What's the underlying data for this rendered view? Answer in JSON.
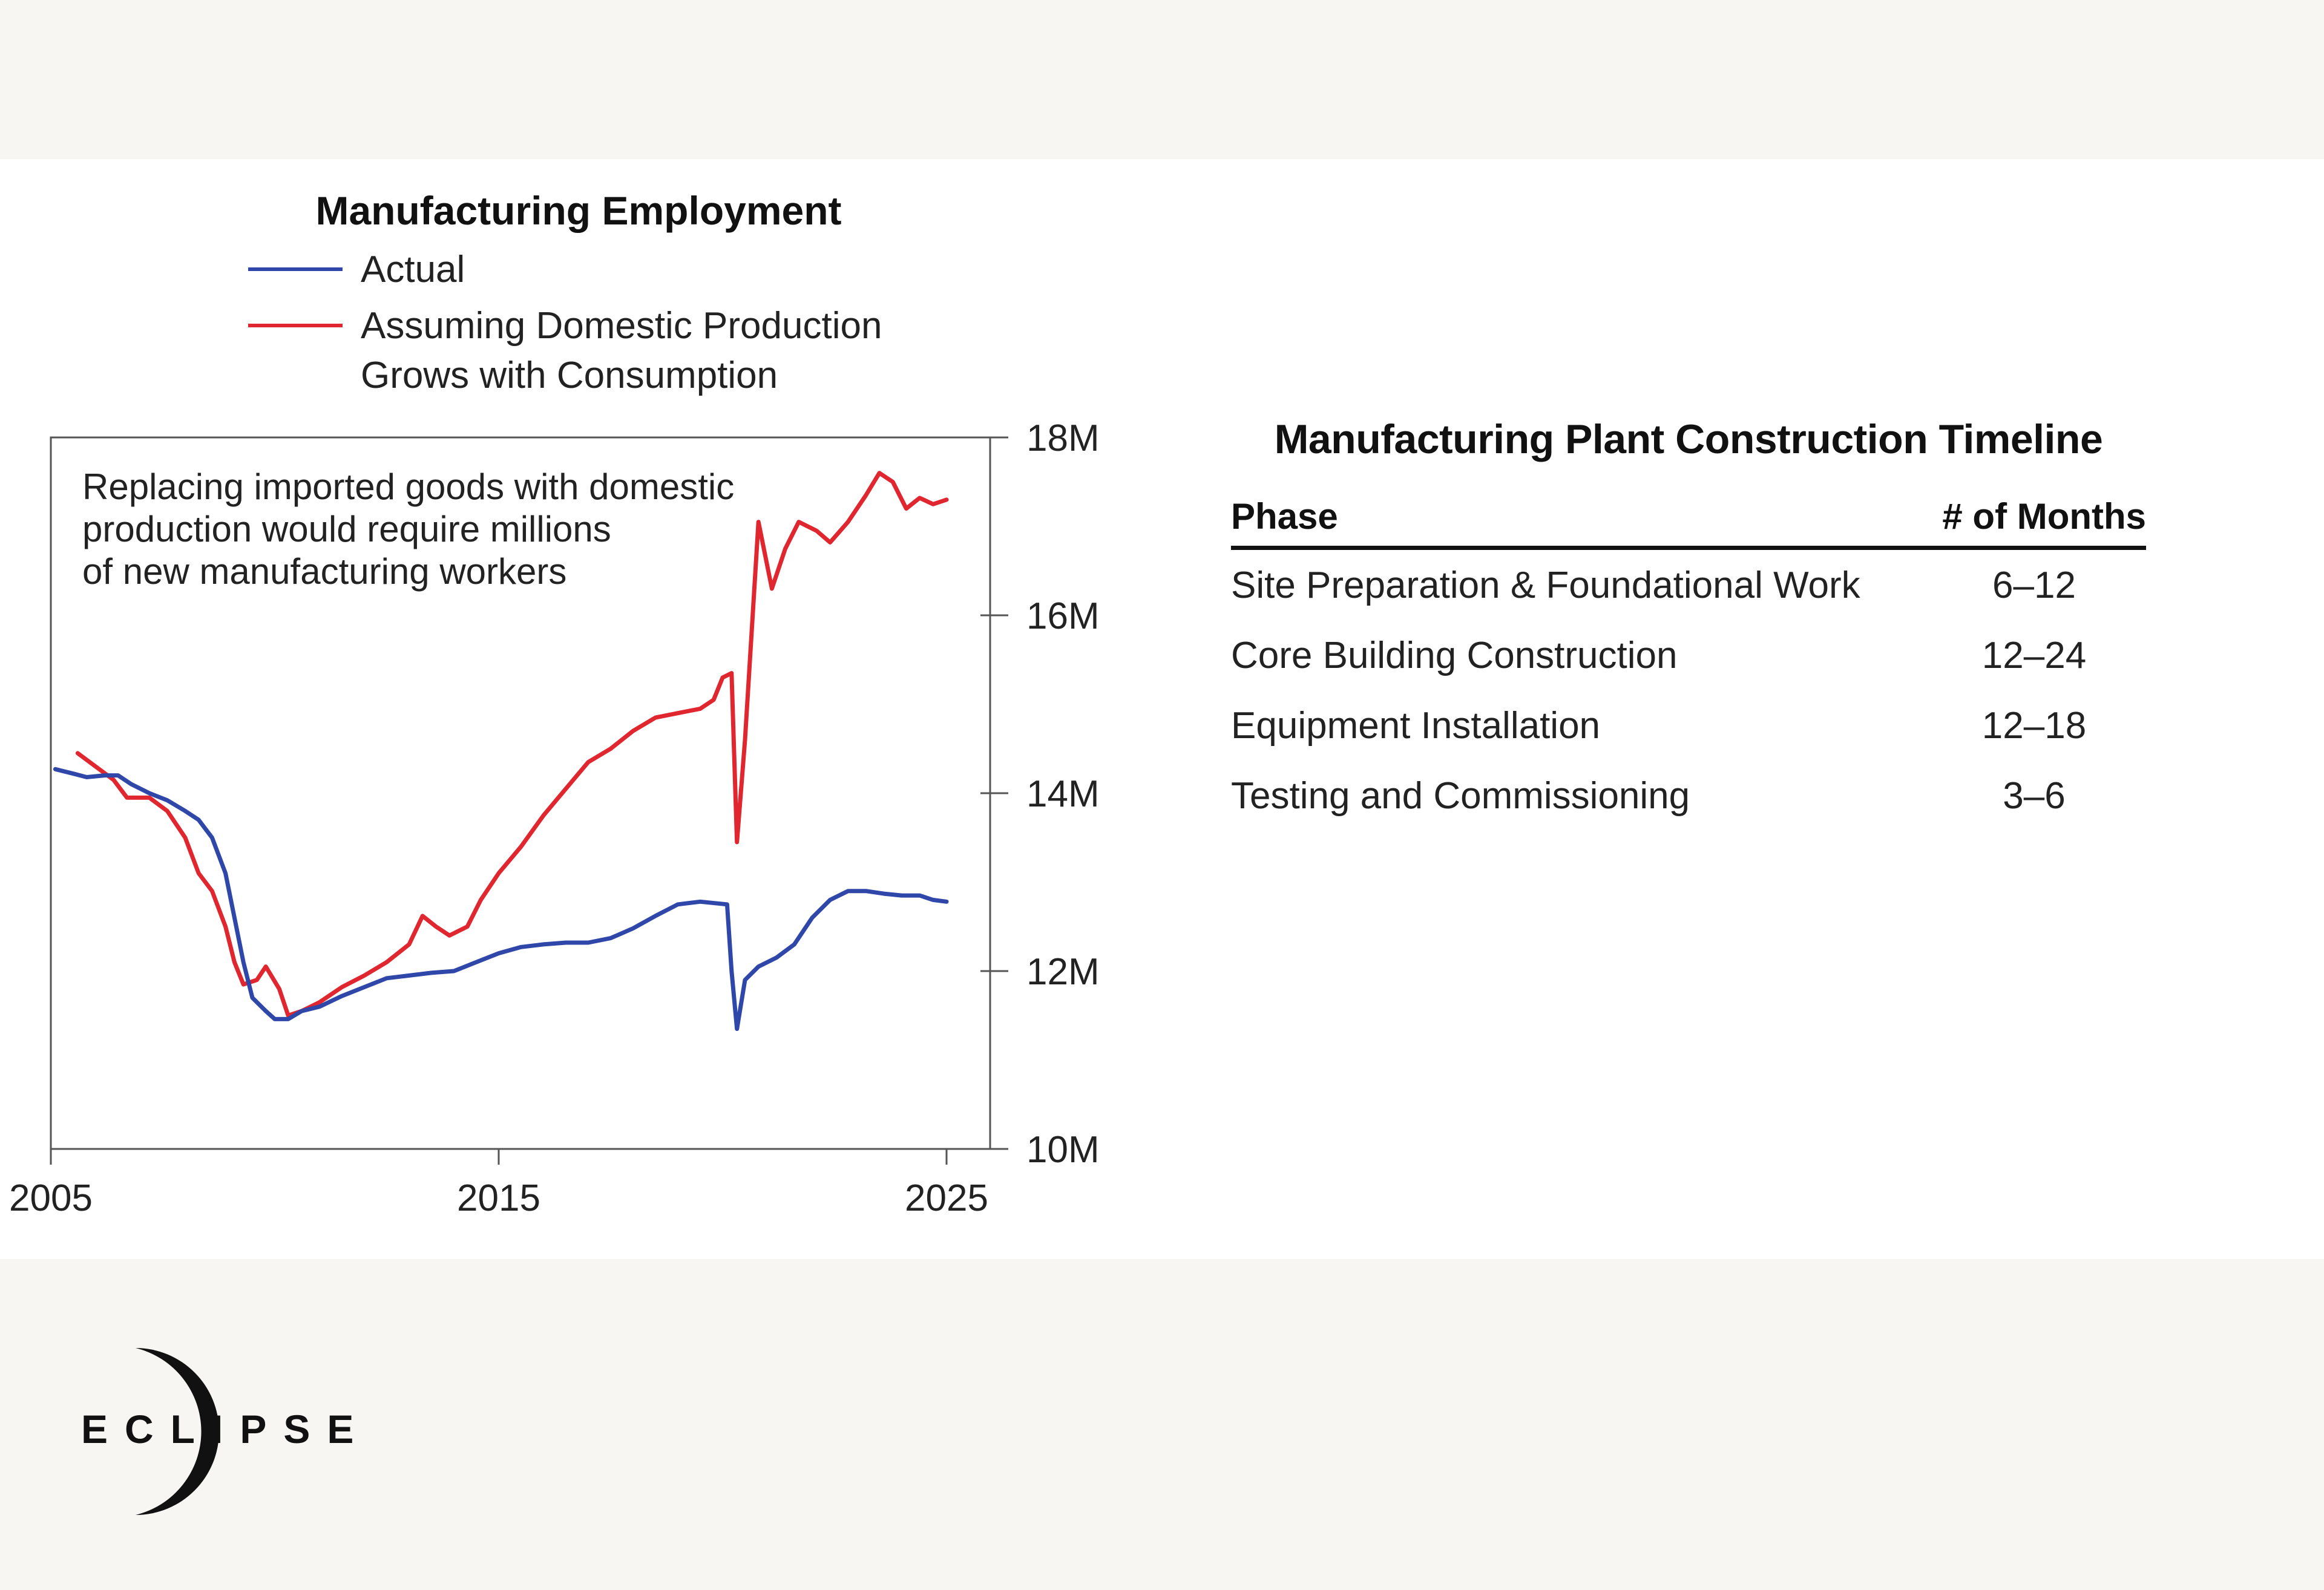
{
  "chart_data": {
    "type": "line",
    "title": "Manufacturing Employment",
    "annotation": [
      "Replacing imported goods with domestic",
      "production would require millions",
      "of new manufacturing workers"
    ],
    "xlim": [
      2005,
      2026
    ],
    "ylim": [
      10,
      18
    ],
    "x_ticks": [
      2005,
      2015,
      2025
    ],
    "x_tick_labels": [
      "2005",
      "2015",
      "2025"
    ],
    "y_ticks": [
      10,
      12,
      14,
      16,
      18
    ],
    "y_tick_labels": [
      "10M",
      "12M",
      "14M",
      "16M",
      "18M"
    ],
    "y_unit": "millions of workers",
    "legend": [
      "Actual",
      "Assuming Domestic Production",
      "Grows with Consumption"
    ],
    "series": [
      {
        "name": "Actual",
        "color": "#2f47a8",
        "points": [
          [
            2005.1,
            14.27
          ],
          [
            2005.5,
            14.22
          ],
          [
            2005.8,
            14.18
          ],
          [
            2006.2,
            14.2
          ],
          [
            2006.5,
            14.2
          ],
          [
            2006.8,
            14.1
          ],
          [
            2007.2,
            14.0
          ],
          [
            2007.6,
            13.92
          ],
          [
            2008.0,
            13.8
          ],
          [
            2008.3,
            13.7
          ],
          [
            2008.6,
            13.5
          ],
          [
            2008.9,
            13.1
          ],
          [
            2009.1,
            12.6
          ],
          [
            2009.3,
            12.1
          ],
          [
            2009.5,
            11.7
          ],
          [
            2009.8,
            11.55
          ],
          [
            2010.0,
            11.46
          ],
          [
            2010.3,
            11.46
          ],
          [
            2010.6,
            11.55
          ],
          [
            2011.0,
            11.6
          ],
          [
            2011.5,
            11.72
          ],
          [
            2012.0,
            11.82
          ],
          [
            2012.5,
            11.92
          ],
          [
            2013.0,
            11.95
          ],
          [
            2013.5,
            11.98
          ],
          [
            2014.0,
            12.0
          ],
          [
            2014.5,
            12.1
          ],
          [
            2015.0,
            12.2
          ],
          [
            2015.5,
            12.27
          ],
          [
            2016.0,
            12.3
          ],
          [
            2016.5,
            12.32
          ],
          [
            2017.0,
            12.32
          ],
          [
            2017.5,
            12.37
          ],
          [
            2018.0,
            12.48
          ],
          [
            2018.5,
            12.62
          ],
          [
            2019.0,
            12.75
          ],
          [
            2019.5,
            12.78
          ],
          [
            2019.9,
            12.76
          ],
          [
            2020.1,
            12.75
          ],
          [
            2020.2,
            12.0
          ],
          [
            2020.32,
            11.35
          ],
          [
            2020.5,
            11.9
          ],
          [
            2020.8,
            12.05
          ],
          [
            2021.2,
            12.15
          ],
          [
            2021.6,
            12.3
          ],
          [
            2022.0,
            12.6
          ],
          [
            2022.4,
            12.8
          ],
          [
            2022.8,
            12.9
          ],
          [
            2023.2,
            12.9
          ],
          [
            2023.6,
            12.87
          ],
          [
            2024.0,
            12.85
          ],
          [
            2024.4,
            12.85
          ],
          [
            2024.7,
            12.8
          ],
          [
            2025.0,
            12.78
          ]
        ]
      },
      {
        "name": "Assuming Domestic Production Grows with Consumption",
        "color": "#e0262e",
        "points": [
          [
            2005.6,
            14.45
          ],
          [
            2006.0,
            14.3
          ],
          [
            2006.4,
            14.15
          ],
          [
            2006.7,
            13.95
          ],
          [
            2007.2,
            13.95
          ],
          [
            2007.6,
            13.8
          ],
          [
            2008.0,
            13.5
          ],
          [
            2008.3,
            13.1
          ],
          [
            2008.6,
            12.9
          ],
          [
            2008.9,
            12.5
          ],
          [
            2009.1,
            12.1
          ],
          [
            2009.3,
            11.85
          ],
          [
            2009.6,
            11.9
          ],
          [
            2009.8,
            12.05
          ],
          [
            2010.1,
            11.8
          ],
          [
            2010.3,
            11.5
          ],
          [
            2010.6,
            11.55
          ],
          [
            2011.0,
            11.65
          ],
          [
            2011.5,
            11.82
          ],
          [
            2012.0,
            11.95
          ],
          [
            2012.5,
            12.1
          ],
          [
            2013.0,
            12.3
          ],
          [
            2013.3,
            12.62
          ],
          [
            2013.6,
            12.5
          ],
          [
            2013.9,
            12.4
          ],
          [
            2014.3,
            12.5
          ],
          [
            2014.6,
            12.8
          ],
          [
            2015.0,
            13.1
          ],
          [
            2015.5,
            13.4
          ],
          [
            2016.0,
            13.75
          ],
          [
            2016.5,
            14.05
          ],
          [
            2017.0,
            14.35
          ],
          [
            2017.5,
            14.5
          ],
          [
            2018.0,
            14.7
          ],
          [
            2018.5,
            14.85
          ],
          [
            2019.0,
            14.9
          ],
          [
            2019.5,
            14.95
          ],
          [
            2019.8,
            15.05
          ],
          [
            2020.0,
            15.3
          ],
          [
            2020.2,
            15.35
          ],
          [
            2020.32,
            13.45
          ],
          [
            2020.5,
            14.6
          ],
          [
            2020.8,
            17.05
          ],
          [
            2021.1,
            16.3
          ],
          [
            2021.4,
            16.75
          ],
          [
            2021.7,
            17.05
          ],
          [
            2022.1,
            16.95
          ],
          [
            2022.4,
            16.82
          ],
          [
            2022.8,
            17.05
          ],
          [
            2023.2,
            17.35
          ],
          [
            2023.5,
            17.6
          ],
          [
            2023.8,
            17.5
          ],
          [
            2024.1,
            17.2
          ],
          [
            2024.4,
            17.32
          ],
          [
            2024.7,
            17.25
          ],
          [
            2025.0,
            17.3
          ]
        ]
      }
    ]
  },
  "timeline": {
    "title": "Manufacturing Plant Construction Timeline",
    "headers": {
      "phase": "Phase",
      "months": "# of Months"
    },
    "rows": [
      {
        "phase": "Site Preparation & Foundational Work",
        "months": "6–12"
      },
      {
        "phase": "Core Building Construction",
        "months": "12–24"
      },
      {
        "phase": "Equipment Installation",
        "months": "12–18"
      },
      {
        "phase": "Testing and Commissioning",
        "months": "3–6"
      }
    ]
  },
  "brand": {
    "name": "ECLIPSE"
  }
}
